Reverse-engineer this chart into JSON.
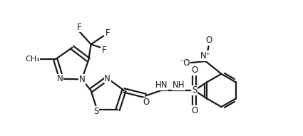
{
  "bg_color": "#ffffff",
  "line_color": "#1a1a1a",
  "line_width": 1.6,
  "font_size": 8.5,
  "figsize": [
    4.25,
    1.91
  ],
  "dpi": 100,
  "xlim": [
    0,
    10
  ],
  "ylim": [
    0,
    4.5
  ]
}
